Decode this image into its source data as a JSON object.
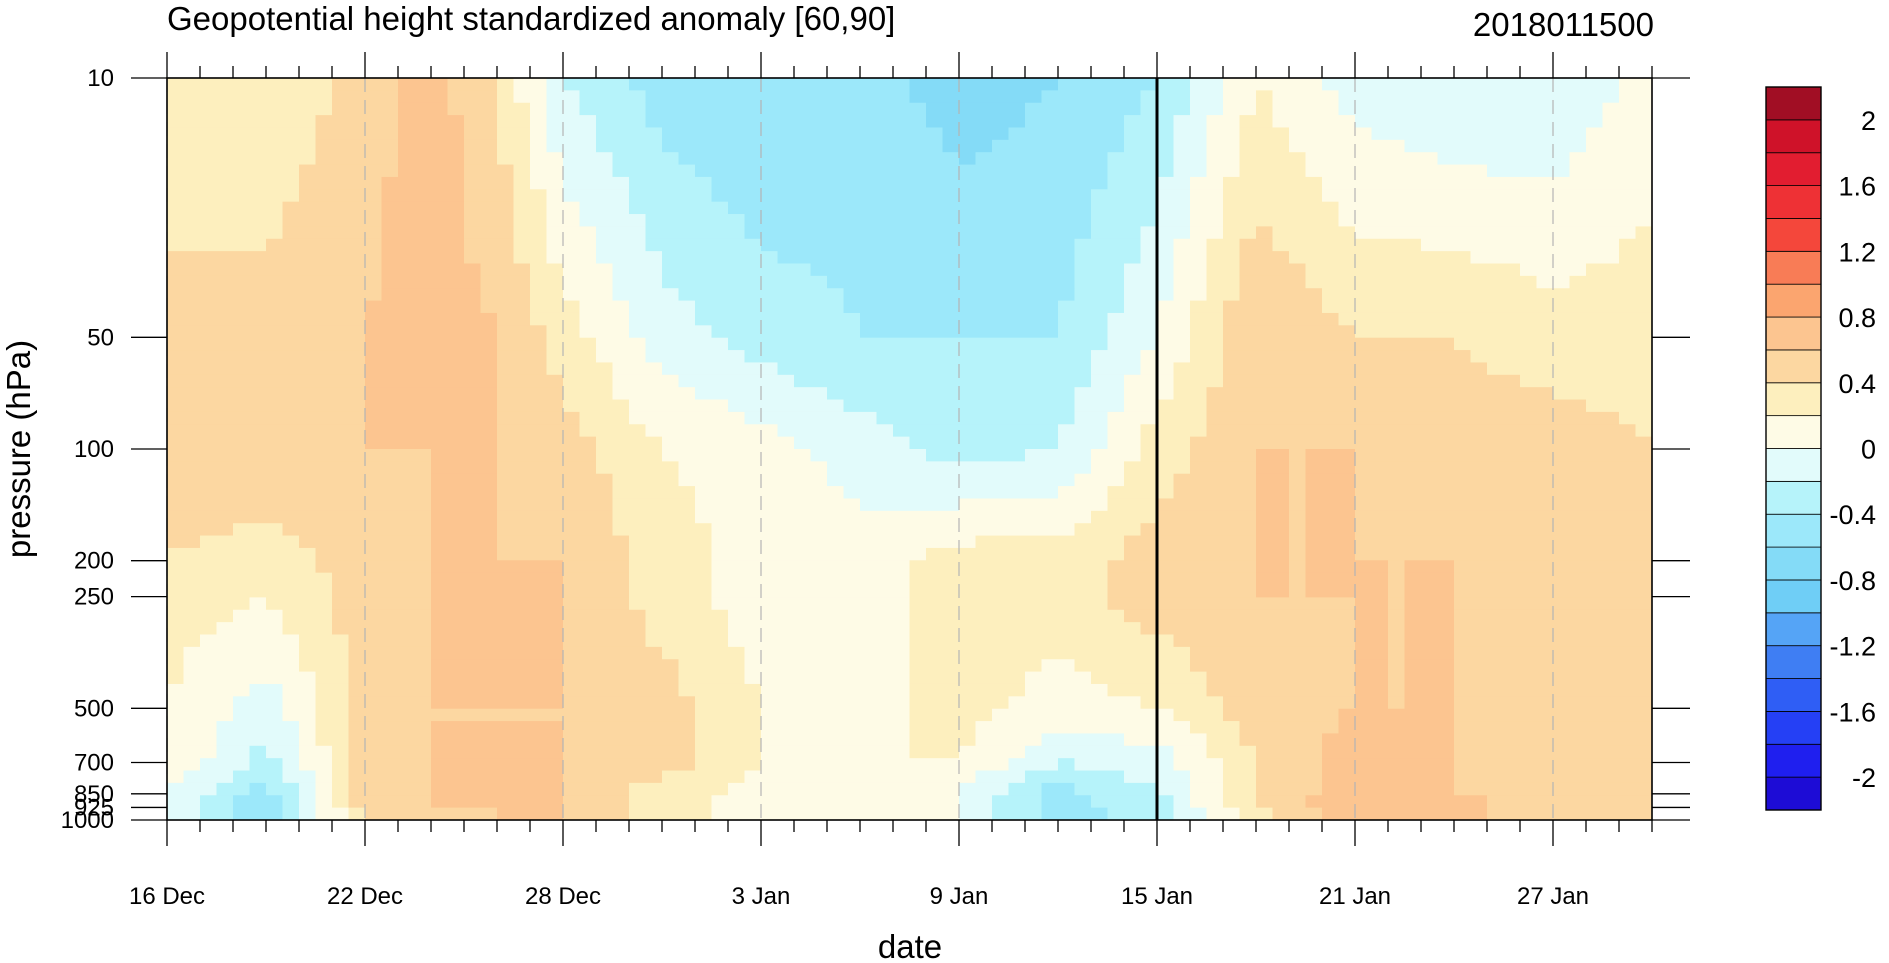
{
  "chart_data": {
    "type": "heatmap",
    "title": "Geopotential height standardized anomaly [60,90]",
    "run_label": "2018011500",
    "xlabel": "date",
    "ylabel": "pressure (hPa)",
    "x_tick_labels": [
      "16 Dec",
      "22 Dec",
      "28 Dec",
      "3 Jan",
      "9 Jan",
      "15 Jan",
      "21 Jan",
      "27 Jan"
    ],
    "x_tick_days": [
      0,
      6,
      12,
      18,
      24,
      30,
      36,
      42
    ],
    "x_range_days": [
      0,
      45
    ],
    "y_tick_labels": [
      "10",
      "50",
      "100",
      "200",
      "250",
      "500",
      "700",
      "850",
      "925",
      "1000"
    ],
    "y_tick_values": [
      10,
      50,
      100,
      200,
      250,
      500,
      700,
      850,
      925,
      1000
    ],
    "y_range": [
      10,
      1000
    ],
    "y_scale": "log-pressure (inverted)",
    "marker_day": 30,
    "colorbar": {
      "labels": [
        "2",
        "1.6",
        "1.2",
        "0.8",
        "0.4",
        "0",
        "-0.4",
        "-0.8",
        "-1.2",
        "-1.6",
        "-2"
      ],
      "label_values": [
        2,
        1.6,
        1.2,
        0.8,
        0.4,
        0,
        -0.4,
        -0.8,
        -1.2,
        -1.6,
        -2
      ],
      "levels": [
        -2.2,
        -2.0,
        -1.8,
        -1.6,
        -1.4,
        -1.2,
        -1.0,
        -0.8,
        -0.6,
        -0.4,
        -0.2,
        0.0,
        0.2,
        0.4,
        0.6,
        0.8,
        1.0,
        1.2,
        1.4,
        1.6,
        1.8,
        2.0,
        2.2
      ],
      "colors": [
        "#1d0cd6",
        "#1f1fef",
        "#2540f5",
        "#2f5ef5",
        "#3f7ef3",
        "#55a4f6",
        "#6fcef6",
        "#84dbf7",
        "#9ce8fa",
        "#b6f3fa",
        "#e2fbfb",
        "#fefbe6",
        "#fdefbe",
        "#fcd7a1",
        "#fcc590",
        "#fba56f",
        "#f87c56",
        "#f4473b",
        "#ee3135",
        "#e21d30",
        "#cf1229",
        "#a10e24"
      ]
    },
    "approx_field": {
      "pressures_hPa": [
        10,
        50,
        100,
        200,
        250,
        500,
        700,
        850,
        925,
        1000
      ],
      "columns": [
        {
          "day": 0,
          "values": [
            0.2,
            0.5,
            0.5,
            0.4,
            0.3,
            0.2,
            0.2,
            0.0,
            0.0,
            0.0
          ]
        },
        {
          "day": 3,
          "values": [
            0.2,
            0.5,
            0.6,
            0.3,
            0.2,
            -0.1,
            -0.3,
            -0.5,
            -0.6,
            -0.5
          ]
        },
        {
          "day": 6,
          "values": [
            0.5,
            0.6,
            0.6,
            0.5,
            0.5,
            0.5,
            0.5,
            0.5,
            0.5,
            0.4
          ]
        },
        {
          "day": 8,
          "values": [
            0.7,
            0.7,
            0.6,
            0.6,
            0.6,
            0.6,
            0.6,
            0.6,
            0.6,
            0.5
          ]
        },
        {
          "day": 10,
          "values": [
            0.4,
            0.6,
            0.6,
            0.6,
            0.6,
            0.6,
            0.6,
            0.6,
            0.6,
            0.6
          ]
        },
        {
          "day": 12,
          "values": [
            -0.2,
            0.3,
            0.5,
            0.6,
            0.6,
            0.6,
            0.6,
            0.6,
            0.6,
            0.6
          ]
        },
        {
          "day": 15,
          "values": [
            -0.5,
            -0.1,
            0.2,
            0.3,
            0.3,
            0.5,
            0.5,
            0.3,
            0.3,
            0.3
          ]
        },
        {
          "day": 18,
          "values": [
            -0.6,
            -0.3,
            0.1,
            0.1,
            0.1,
            0.2,
            0.2,
            0.1,
            0.1,
            0.1
          ]
        },
        {
          "day": 21,
          "values": [
            -0.5,
            -0.4,
            -0.1,
            0.1,
            0.1,
            0.1,
            0.2,
            0.1,
            0.1,
            0.1
          ]
        },
        {
          "day": 24,
          "values": [
            -0.7,
            -0.4,
            -0.3,
            0.3,
            0.3,
            0.3,
            0.2,
            0.0,
            0.0,
            0.0
          ]
        },
        {
          "day": 27,
          "values": [
            -0.6,
            -0.4,
            -0.2,
            0.3,
            0.3,
            0.1,
            -0.2,
            -0.5,
            -0.5,
            -0.5
          ]
        },
        {
          "day": 30,
          "values": [
            -0.4,
            0.0,
            0.3,
            0.5,
            0.5,
            0.2,
            -0.1,
            -0.2,
            -0.3,
            -0.3
          ]
        },
        {
          "day": 33,
          "values": [
            0.2,
            0.6,
            0.6,
            0.6,
            0.6,
            0.5,
            0.4,
            0.4,
            0.4,
            0.3
          ]
        },
        {
          "day": 36,
          "values": [
            -0.1,
            0.4,
            0.6,
            0.6,
            0.6,
            0.6,
            0.7,
            0.7,
            0.8,
            0.7
          ]
        },
        {
          "day": 39,
          "values": [
            -0.2,
            0.4,
            0.5,
            0.6,
            0.6,
            0.6,
            0.6,
            0.6,
            0.7,
            0.6
          ]
        },
        {
          "day": 42,
          "values": [
            -0.2,
            0.3,
            0.5,
            0.5,
            0.5,
            0.5,
            0.5,
            0.5,
            0.5,
            0.5
          ]
        },
        {
          "day": 45,
          "values": [
            0.1,
            0.3,
            0.4,
            0.4,
            0.4,
            0.4,
            0.4,
            0.4,
            0.4,
            0.4
          ]
        }
      ]
    }
  }
}
